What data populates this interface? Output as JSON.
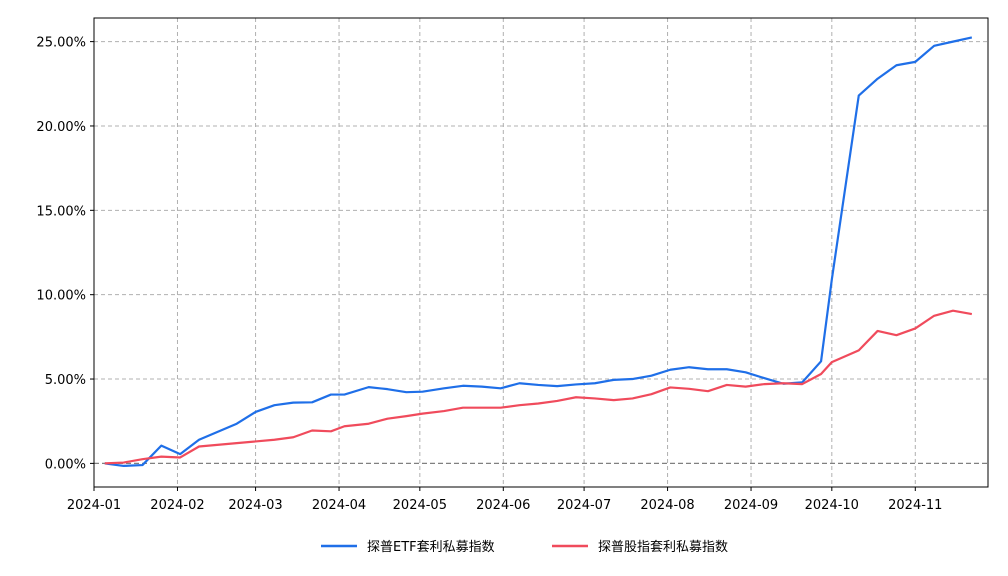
{
  "chart_data": {
    "type": "line",
    "x": [
      "2024-01-05",
      "2024-01-12",
      "2024-01-19",
      "2024-01-26",
      "2024-02-02",
      "2024-02-09",
      "2024-02-23",
      "2024-03-01",
      "2024-03-08",
      "2024-03-15",
      "2024-03-22",
      "2024-03-29",
      "2024-04-03",
      "2024-04-12",
      "2024-04-19",
      "2024-04-26",
      "2024-05-02",
      "2024-05-10",
      "2024-05-17",
      "2024-05-24",
      "2024-05-31",
      "2024-06-07",
      "2024-06-14",
      "2024-06-21",
      "2024-06-28",
      "2024-07-05",
      "2024-07-12",
      "2024-07-19",
      "2024-07-26",
      "2024-08-02",
      "2024-08-09",
      "2024-08-16",
      "2024-08-23",
      "2024-08-30",
      "2024-09-06",
      "2024-09-13",
      "2024-09-20",
      "2024-09-27",
      "2024-10-01",
      "2024-10-11",
      "2024-10-18",
      "2024-10-25",
      "2024-11-01",
      "2024-11-08",
      "2024-11-15",
      "2024-11-22"
    ],
    "series": [
      {
        "name": "探普ETF套利私募指数",
        "color": "#1f6fe8",
        "values": [
          0.0,
          -0.15,
          -0.1,
          1.05,
          0.55,
          1.4,
          2.35,
          3.05,
          3.45,
          3.6,
          3.62,
          4.08,
          4.08,
          4.52,
          4.4,
          4.22,
          4.25,
          4.45,
          4.6,
          4.55,
          4.45,
          4.75,
          4.65,
          4.58,
          4.68,
          4.75,
          4.95,
          5.0,
          5.2,
          5.55,
          5.7,
          5.58,
          5.58,
          5.4,
          5.05,
          4.72,
          4.8,
          6.05,
          10.9,
          21.8,
          22.8,
          23.6,
          23.8,
          24.75,
          25.0,
          25.25
        ]
      },
      {
        "name": "探普股指套利私募指数",
        "color": "#f04b5c",
        "values": [
          0.0,
          0.05,
          0.25,
          0.4,
          0.35,
          1.0,
          1.2,
          1.3,
          1.4,
          1.55,
          1.95,
          1.9,
          2.2,
          2.35,
          2.65,
          2.8,
          2.95,
          3.1,
          3.3,
          3.3,
          3.3,
          3.45,
          3.55,
          3.7,
          3.92,
          3.85,
          3.75,
          3.85,
          4.1,
          4.5,
          4.42,
          4.28,
          4.65,
          4.55,
          4.7,
          4.75,
          4.7,
          5.3,
          6.0,
          6.7,
          7.85,
          7.6,
          8.0,
          8.75,
          9.05,
          8.85
        ]
      }
    ],
    "x_ticks": [
      "2024-01",
      "2024-02",
      "2024-03",
      "2024-04",
      "2024-05",
      "2024-06",
      "2024-07",
      "2024-08",
      "2024-09",
      "2024-10",
      "2024-11"
    ],
    "y_ticks": [
      0,
      5,
      10,
      15,
      20,
      25
    ],
    "y_tick_labels": [
      "0.00%",
      "5.00%",
      "10.00%",
      "15.00%",
      "20.00%",
      "25.00%"
    ],
    "ylim": [
      -1.4,
      26.4
    ],
    "xlim": [
      "2024-01-01",
      "2024-11-28"
    ],
    "grid": true,
    "legend": "bottom-center",
    "title": "",
    "xlabel": "",
    "ylabel": ""
  }
}
